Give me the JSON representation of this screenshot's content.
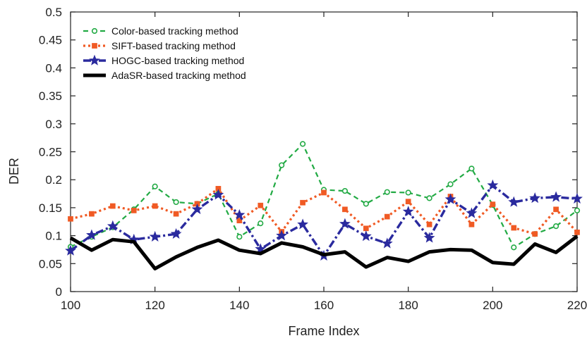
{
  "chart_data": {
    "type": "line",
    "title": "",
    "xlabel": "Frame Index",
    "ylabel": "DER",
    "xlim": [
      100,
      220
    ],
    "ylim": [
      0,
      0.5
    ],
    "x_ticks": [
      100,
      120,
      140,
      160,
      180,
      200,
      220
    ],
    "y_ticks": [
      0,
      0.05,
      0.1,
      0.15,
      0.2,
      0.25,
      0.3,
      0.35,
      0.4,
      0.45,
      0.5
    ],
    "y_tick_labels": [
      "0",
      "0.05",
      "0.1",
      "0.15",
      "0.2",
      "0.25",
      "0.3",
      "0.35",
      "0.4",
      "0.45",
      "0.5"
    ],
    "grid": false,
    "legend_position": "top-left",
    "x": [
      100,
      105,
      110,
      115,
      120,
      125,
      130,
      135,
      140,
      145,
      150,
      155,
      160,
      165,
      170,
      175,
      180,
      185,
      190,
      195,
      200,
      205,
      210,
      215,
      220
    ],
    "series": [
      {
        "name": "Color-based tracking method",
        "color": "#22aa44",
        "marker": "circle",
        "dash": "dashed",
        "values": [
          0.08,
          0.098,
          0.115,
          0.147,
          0.188,
          0.16,
          0.157,
          0.175,
          0.098,
          0.122,
          0.226,
          0.264,
          0.182,
          0.18,
          0.157,
          0.178,
          0.177,
          0.167,
          0.192,
          0.22,
          0.155,
          0.079,
          0.103,
          0.117,
          0.145
        ]
      },
      {
        "name": "SIFT-based tracking method",
        "color": "#f05a24",
        "marker": "square",
        "dash": "dotted",
        "values": [
          0.13,
          0.139,
          0.153,
          0.145,
          0.153,
          0.139,
          0.157,
          0.184,
          0.127,
          0.154,
          0.107,
          0.159,
          0.177,
          0.147,
          0.113,
          0.134,
          0.161,
          0.12,
          0.17,
          0.12,
          0.156,
          0.114,
          0.103,
          0.147,
          0.106
        ]
      },
      {
        "name": "HOGC-based tracking method",
        "color": "#2a2a9e",
        "marker": "star",
        "dash": "dashdot",
        "values": [
          0.073,
          0.101,
          0.117,
          0.093,
          0.098,
          0.103,
          0.147,
          0.173,
          0.137,
          0.076,
          0.1,
          0.12,
          0.064,
          0.121,
          0.099,
          0.086,
          0.143,
          0.096,
          0.165,
          0.14,
          0.19,
          0.16,
          0.167,
          0.169,
          0.166
        ]
      },
      {
        "name": "AdaSR-based tracking method",
        "color": "#000000",
        "marker": "none",
        "dash": "solid",
        "values": [
          0.096,
          0.074,
          0.093,
          0.089,
          0.041,
          0.062,
          0.079,
          0.092,
          0.074,
          0.068,
          0.087,
          0.08,
          0.066,
          0.071,
          0.044,
          0.061,
          0.054,
          0.071,
          0.075,
          0.074,
          0.052,
          0.049,
          0.085,
          0.07,
          0.099
        ]
      }
    ]
  }
}
